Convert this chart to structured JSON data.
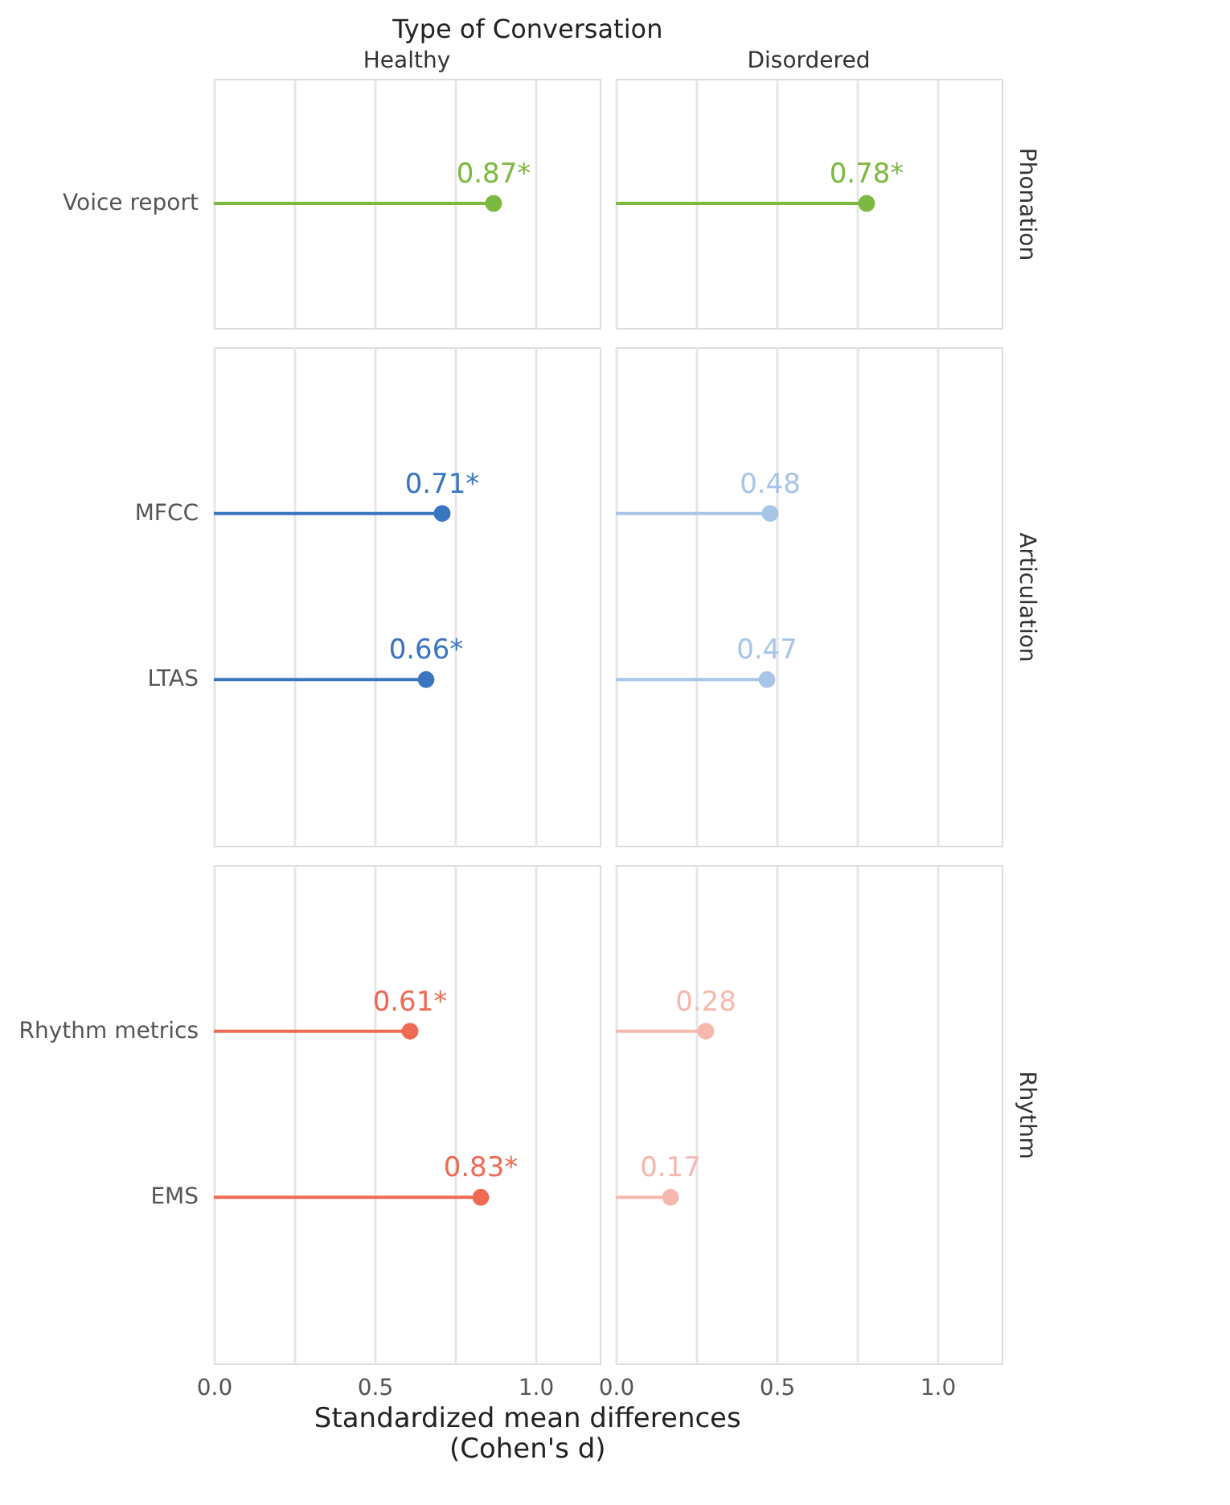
{
  "chart_data": [
    {
      "type": "lollipop",
      "orientation": "horizontal",
      "title": "Type of Conversation",
      "subtitle": "Healthy",
      "categories": [
        "Voice report"
      ],
      "values": [
        0.87
      ],
      "colors": [
        "#7cb940"
      ],
      "value_labels": [
        "0.87*"
      ],
      "xlim": [
        0,
        1.2
      ],
      "grid": "x",
      "tick_labels": "y"
    },
    {
      "type": "lollipop",
      "orientation": "horizontal",
      "subtitle": "Disordered",
      "y2label": "Phonation",
      "categories": [
        null
      ],
      "values": [
        0.78
      ],
      "colors": [
        "#7cb940"
      ],
      "value_labels": [
        "0.78*"
      ],
      "xlim": [
        0,
        1.2
      ],
      "grid": "x",
      "tick_labels": false
    },
    {
      "type": "lollipop",
      "orientation": "horizontal",
      "categories": [
        "MFCC",
        "LTAS"
      ],
      "values": [
        0.71,
        0.66
      ],
      "colors": [
        "#3a76c0",
        "#3a76c0"
      ],
      "value_labels": [
        "0.71*",
        "0.66*"
      ],
      "xlim": [
        0,
        1.2
      ],
      "grid": "x",
      "tick_labels": "y"
    },
    {
      "type": "lollipop",
      "orientation": "horizontal",
      "y2label": "Articulation",
      "categories": [
        null,
        null
      ],
      "values": [
        0.48,
        0.47
      ],
      "colors": [
        "#a8c5e8",
        "#a8c5e8"
      ],
      "value_labels": [
        "0.48",
        "0.47"
      ],
      "xlim": [
        0,
        1.2
      ],
      "grid": "x",
      "tick_labels": false
    },
    {
      "type": "lollipop",
      "orientation": "horizontal",
      "xlabel": "Standardized mean differences\n(Cohen's d)",
      "categories": [
        "Rhythm metrics",
        "EMS"
      ],
      "values": [
        0.61,
        0.83
      ],
      "colors": [
        "#ee6a52",
        "#ee6a52"
      ],
      "value_labels": [
        "0.61*",
        "0.83*"
      ],
      "xlim": [
        0,
        1.2
      ],
      "xticks": [
        {
          "value": 0,
          "label": "0.0"
        },
        {
          "value": 0.25,
          "label": null
        },
        0.5,
        {
          "value": 0.75,
          "label": null
        },
        {
          "value": 1,
          "label": "1.0"
        }
      ],
      "grid": "x"
    },
    {
      "type": "lollipop",
      "orientation": "horizontal",
      "y2label": "Rhythm",
      "categories": [
        null,
        null
      ],
      "values": [
        0.28,
        0.17
      ],
      "colors": [
        "#f6b8ac",
        "#f6b8ac"
      ],
      "value_labels": [
        "0.28",
        "0.17"
      ],
      "xlim": [
        0,
        1.2
      ],
      "xticks": [
        {
          "value": 0,
          "label": "0.0"
        },
        {
          "value": 0.25,
          "label": null
        },
        0.5,
        {
          "value": 0.75,
          "label": null
        },
        {
          "value": 1,
          "label": "1.0"
        }
      ],
      "grid": "x",
      "tick_labels": "x"
    }
  ]
}
